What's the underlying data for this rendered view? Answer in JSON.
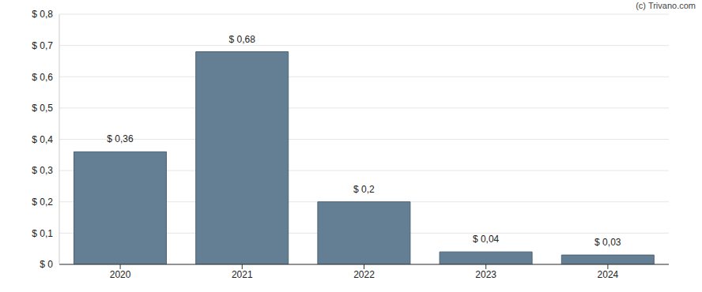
{
  "chart_data": {
    "type": "bar",
    "annotations": [
      "(c) Trivano.com"
    ],
    "categories": [
      "2020",
      "2021",
      "2022",
      "2023",
      "2024"
    ],
    "values": [
      0.36,
      0.68,
      0.2,
      0.04,
      0.03
    ],
    "value_labels": [
      "$ 0,36",
      "$ 0,68",
      "$ 0,2",
      "$ 0,04",
      "$ 0,03"
    ],
    "data_labels": true,
    "color": "#647f94",
    "ylim": [
      0,
      0.8
    ],
    "yticks": [
      {
        "value": 0,
        "label": "$ 0"
      },
      {
        "value": 0.1,
        "label": "$ 0,1"
      },
      {
        "value": 0.2,
        "label": "$ 0,2"
      },
      {
        "value": 0.3,
        "label": "$ 0,3"
      },
      {
        "value": 0.4,
        "label": "$ 0,4"
      },
      {
        "value": 0.5,
        "label": "$ 0,5"
      },
      {
        "value": 0.6,
        "label": "$ 0,6"
      },
      {
        "value": 0.7,
        "label": "$ 0,7"
      },
      {
        "value": 0.8,
        "label": "$ 0,8"
      }
    ],
    "grid": true
  }
}
